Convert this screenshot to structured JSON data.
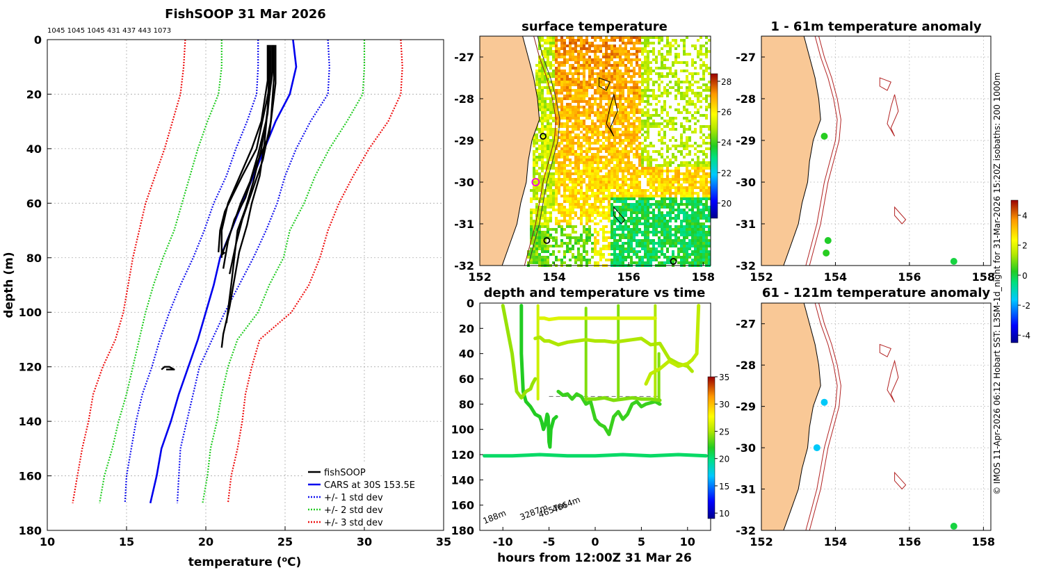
{
  "chart_data": [
    {
      "type": "line",
      "title": "FishSOOP 31 Mar 2026",
      "subtitle": "1045 1045 1045 431 437 443 1073",
      "xlabel": "temperature (°C)",
      "xlabel_main": "temperature (",
      "xlabel_sup": "o",
      "xlabel_end": "C)",
      "ylabel": "depth (m)",
      "xlim": [
        10,
        35
      ],
      "ylim": [
        180,
        0
      ],
      "xticks": [
        10,
        15,
        20,
        25,
        30,
        35
      ],
      "yticks": [
        0,
        20,
        40,
        60,
        80,
        100,
        120,
        140,
        160,
        180
      ],
      "grid": true,
      "legend": [
        "fishSOOP",
        "CARS at 30S 153.5E",
        "+/- 1 std dev",
        "+/- 2 std dev",
        "+/- 3 std dev"
      ],
      "legend_position": "bottom-right",
      "depth": [
        0,
        10,
        20,
        30,
        40,
        50,
        60,
        70,
        80,
        90,
        100,
        110,
        120,
        130,
        140,
        150,
        160,
        170
      ],
      "cars_mean": [
        25.5,
        25.7,
        25.3,
        24.4,
        23.7,
        23.0,
        22.3,
        21.6,
        20.9,
        20.5,
        20.0,
        19.5,
        18.9,
        18.3,
        17.8,
        17.2,
        16.9,
        16.5
      ],
      "series": [
        {
          "name": "+/- 3 std dev",
          "color": "#ee1111",
          "low": [
            18.7,
            18.6,
            18.4,
            17.9,
            17.4,
            16.8,
            16.2,
            15.8,
            15.4,
            15.1,
            14.8,
            14.3,
            13.5,
            12.9,
            12.6,
            12.2,
            11.9,
            11.6
          ],
          "high": [
            32.3,
            32.4,
            32.3,
            31.5,
            30.3,
            29.3,
            28.4,
            27.7,
            27.2,
            26.5,
            25.4,
            23.4,
            22.9,
            22.5,
            22.3,
            22.0,
            21.6,
            21.4
          ]
        },
        {
          "name": "+/- 2 std dev",
          "color": "#22cc22",
          "low": [
            21.0,
            21.0,
            20.8,
            20.1,
            19.5,
            19.0,
            18.5,
            18.0,
            17.3,
            16.7,
            16.2,
            15.8,
            15.4,
            15.0,
            14.5,
            14.1,
            13.6,
            13.3
          ]
        },
        {
          "name": "+/- 2 std dev (high)",
          "color": "#22cc22",
          "high": [
            30.0,
            30.0,
            29.9,
            28.9,
            27.8,
            26.9,
            26.2,
            25.3,
            24.9,
            24.0,
            23.3,
            22.0,
            21.4,
            21.0,
            20.7,
            20.3,
            20.1,
            19.8
          ]
        },
        {
          "name": "+/- 1 std dev",
          "color": "#1111ee",
          "low": [
            23.3,
            23.3,
            23.2,
            22.6,
            21.9,
            21.3,
            20.5,
            19.9,
            19.2,
            18.4,
            17.7,
            17.1,
            16.6,
            16.0,
            15.6,
            15.3,
            15.0,
            14.9
          ],
          "high": [
            27.7,
            27.8,
            27.7,
            26.6,
            25.7,
            25.0,
            24.5,
            23.8,
            23.0,
            22.1,
            21.2,
            20.4,
            19.6,
            19.2,
            18.8,
            18.4,
            18.3,
            18.2
          ]
        }
      ],
      "fishsoop_profiles": [
        {
          "t": [
            24.0,
            24.0,
            23.9,
            23.7,
            23.4,
            22.9,
            22.6,
            22.1,
            21.8,
            21.5,
            21.1,
            21.0
          ],
          "d": [
            2,
            12,
            25,
            38,
            50,
            60,
            68,
            78,
            88,
            98,
            108,
            113
          ]
        },
        {
          "t": [
            24.1,
            24.1,
            23.9,
            23.5,
            23.0,
            22.5,
            22.0,
            21.8,
            21.6,
            21.3
          ],
          "d": [
            2,
            15,
            27,
            40,
            52,
            62,
            70,
            80,
            90,
            104
          ]
        },
        {
          "t": [
            24.3,
            24.3,
            24.1,
            23.6,
            22.9,
            22.3,
            21.9,
            21.5
          ],
          "d": [
            2,
            14,
            30,
            44,
            56,
            66,
            75,
            86
          ]
        },
        {
          "t": [
            23.9,
            23.9,
            23.5,
            22.9,
            22.0,
            21.4,
            21.0,
            21.0
          ],
          "d": [
            2,
            15,
            30,
            40,
            52,
            60,
            70,
            80
          ]
        },
        {
          "t": [
            24.2,
            24.2,
            23.8,
            23.3,
            22.8,
            22.2,
            21.6,
            21.0,
            21.2
          ],
          "d": [
            2,
            12,
            30,
            42,
            52,
            60,
            70,
            79,
            78
          ]
        },
        {
          "t": [
            24.0,
            24.0,
            23.2,
            22.3,
            21.7,
            21.2,
            20.9,
            20.8
          ],
          "d": [
            4,
            18,
            40,
            50,
            57,
            63,
            70,
            78
          ]
        },
        {
          "t": [
            24.4,
            24.4,
            24.0,
            23.1,
            22.5,
            21.8,
            21.4,
            21.1
          ],
          "d": [
            2,
            16,
            35,
            47,
            58,
            66,
            74,
            84
          ]
        },
        {
          "t": [
            17.2,
            17.4,
            17.7,
            18.0,
            17.5
          ],
          "d": [
            121,
            120,
            120,
            121,
            121
          ]
        }
      ],
      "colors": {
        "fishsoop": "#000000",
        "cars": "#0000ee"
      }
    },
    {
      "type": "heatmap",
      "title": "surface temperature",
      "xlim": [
        152,
        158.2
      ],
      "ylim": [
        -32,
        -26.5
      ],
      "xticks": [
        152,
        154,
        156,
        158
      ],
      "yticks": [
        -27,
        -28,
        -29,
        -30,
        -31,
        -32
      ],
      "colorbar_ticks": [
        28,
        26,
        24,
        22,
        20
      ],
      "colorbar_range": [
        19,
        28.5
      ],
      "land_color": "#f9c896",
      "track_colors": {
        "200m": "#8b1a1a",
        "1000m": "#333333"
      },
      "markers": [
        {
          "lon": 153.7,
          "lat": -28.9,
          "type": "open-black"
        },
        {
          "lon": 153.5,
          "lat": -30.0,
          "type": "open-magenta"
        },
        {
          "lon": 153.8,
          "lat": -31.4,
          "type": "open-black"
        },
        {
          "lon": 157.2,
          "lat": -31.9,
          "type": "open-black"
        }
      ]
    },
    {
      "type": "scatter",
      "title": "depth and temperature vs time",
      "xlabel": "hours from 12:00Z 31 Mar 26",
      "ylabel": "",
      "xlim": [
        -12.5,
        12.5
      ],
      "ylim": [
        180,
        0
      ],
      "xticks": [
        -10,
        -5,
        0,
        5,
        10
      ],
      "yticks": [
        0,
        20,
        40,
        60,
        80,
        100,
        120,
        140,
        160,
        180
      ],
      "colorbar_ticks": [
        35,
        30,
        25,
        20,
        15,
        10
      ],
      "colorbar_range": [
        9,
        35
      ],
      "depth_labels": [
        "188m",
        "3287m",
        "4657m",
        "4664m"
      ],
      "traces": [
        {
          "temp": 20.5,
          "x": [
            -12.0,
            -9,
            -6,
            -3,
            0,
            3,
            6,
            9,
            12
          ],
          "y": [
            121,
            121,
            120,
            121,
            121,
            120,
            121,
            120,
            121
          ]
        },
        {
          "temp": 22.0,
          "x": [
            -8.0,
            -8.0,
            -7.8,
            -7.5,
            -7,
            -6.5,
            -6,
            -5.8,
            -5.6,
            -5.4,
            -5.2,
            -5.1,
            -5.0,
            -4.9,
            -4.8,
            -4.5,
            -4.2
          ],
          "y": [
            2,
            40,
            70,
            78,
            82,
            88,
            90,
            94,
            100,
            96,
            88,
            90,
            110,
            114,
            100,
            92,
            90
          ]
        },
        {
          "temp": 22.5,
          "x": [
            -4.0,
            -3.5,
            -3,
            -2.5,
            -2,
            -1.5,
            -1,
            -0.5,
            0,
            0.5,
            1,
            1.5,
            2,
            2.5,
            3,
            3.5,
            4,
            4.5,
            5,
            5.5,
            6,
            6.5,
            7
          ],
          "y": [
            70,
            73,
            72,
            76,
            72,
            74,
            80,
            78,
            92,
            96,
            98,
            104,
            90,
            86,
            92,
            88,
            80,
            78,
            82,
            80,
            79,
            78,
            80
          ]
        },
        {
          "temp": 24.0,
          "x": [
            -1.0,
            0,
            1,
            2,
            3,
            4,
            5,
            6,
            7
          ],
          "y": [
            76,
            76,
            75,
            77,
            76,
            75,
            76,
            76,
            77
          ]
        },
        {
          "temp": 25.0,
          "x": [
            -6.5,
            -6,
            -5.5,
            -5,
            -4,
            -3,
            -2,
            -1,
            0,
            1,
            2,
            3,
            4,
            5,
            6,
            7,
            8,
            9,
            10,
            10.5
          ],
          "y": [
            28,
            27,
            30,
            30,
            33,
            31,
            30,
            29,
            30,
            30,
            31,
            30,
            29,
            28,
            33,
            32,
            44,
            48,
            50,
            54
          ]
        },
        {
          "temp": 26.5,
          "x": [
            -6.0,
            -5.5,
            -5,
            -4,
            -3,
            -2,
            -1,
            0,
            1,
            2,
            3,
            4,
            5,
            6,
            6.5
          ],
          "y": [
            12,
            12,
            13,
            12,
            12,
            12,
            12,
            12,
            12,
            12,
            12,
            12,
            12,
            12,
            12
          ]
        },
        {
          "temp": 25.5,
          "x": [
            5.5,
            6,
            7,
            8,
            9,
            10,
            10.5,
            11,
            11.2
          ],
          "y": [
            64,
            56,
            52,
            46,
            50,
            48,
            45,
            40,
            2
          ]
        },
        {
          "temp": 24.5,
          "x": [
            -10.0,
            -9,
            -8.5,
            -8,
            -7.5,
            -7,
            -6.8,
            -6.5
          ],
          "y": [
            2,
            40,
            70,
            75,
            70,
            68,
            64,
            60
          ]
        }
      ],
      "vertical_casts": [
        {
          "x": -6.2,
          "temp": 26.0
        },
        {
          "x": -1.0,
          "temp": 24.0
        },
        {
          "x": 2.5,
          "temp": 24.0
        },
        {
          "x": 6.5,
          "temp": 25.0
        },
        {
          "x": 6.9,
          "temp": 24.0
        }
      ],
      "cast_ranges": [
        [
          2,
          76
        ],
        [
          4,
          78
        ],
        [
          2,
          76
        ],
        [
          2,
          78
        ],
        [
          40,
          80
        ]
      ]
    },
    {
      "type": "scatter",
      "title": "1 - 61m temperature anomaly",
      "xlim": [
        152,
        158.2
      ],
      "ylim": [
        -32,
        -26.5
      ],
      "xticks": [
        152,
        154,
        156,
        158
      ],
      "yticks": [
        -27,
        -28,
        -29,
        -30,
        -31,
        -32
      ],
      "points": [
        {
          "lon": 153.7,
          "lat": -28.9,
          "anomaly": 0.3
        },
        {
          "lon": 153.8,
          "lat": -31.4,
          "anomaly": 0.2
        },
        {
          "lon": 153.75,
          "lat": -31.7,
          "anomaly": 0.3
        },
        {
          "lon": 157.2,
          "lat": -31.9,
          "anomaly": 0.0
        }
      ]
    },
    {
      "type": "scatter",
      "title": "61 - 121m temperature anomaly",
      "xlim": [
        152,
        158.2
      ],
      "ylim": [
        -32,
        -26.5
      ],
      "xticks": [
        152,
        154,
        156,
        158
      ],
      "yticks": [
        -27,
        -28,
        -29,
        -30,
        -31,
        -32
      ],
      "points": [
        {
          "lon": 153.7,
          "lat": -28.9,
          "anomaly": -1.6
        },
        {
          "lon": 153.5,
          "lat": -30.0,
          "anomaly": -1.6
        },
        {
          "lon": 157.2,
          "lat": -31.9,
          "anomaly": 0.0
        }
      ],
      "colorbar_ticks": [
        4,
        2,
        0,
        -2,
        -4
      ],
      "colorbar_range": [
        -4.5,
        5
      ]
    }
  ],
  "credit": "© IMOS 11-Apr-2026 06:12 Hobart SST: L3SM-1d_night for 31-Mar-2026 15:20Z isobaths: 200  1000m"
}
